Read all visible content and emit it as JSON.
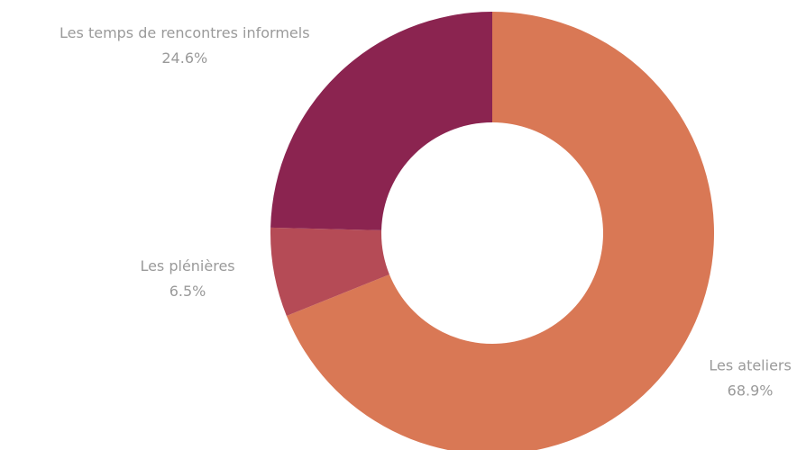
{
  "chart_data": {
    "type": "donut",
    "categories": [
      "Les ateliers",
      "Les plénières",
      "Les temps de rencontres informels"
    ],
    "values": [
      68.9,
      6.5,
      24.6
    ],
    "value_labels": [
      "68.9%",
      "6.5%",
      "24.6%"
    ],
    "colors": [
      "#d97855",
      "#b54b56",
      "#8b2450"
    ]
  }
}
